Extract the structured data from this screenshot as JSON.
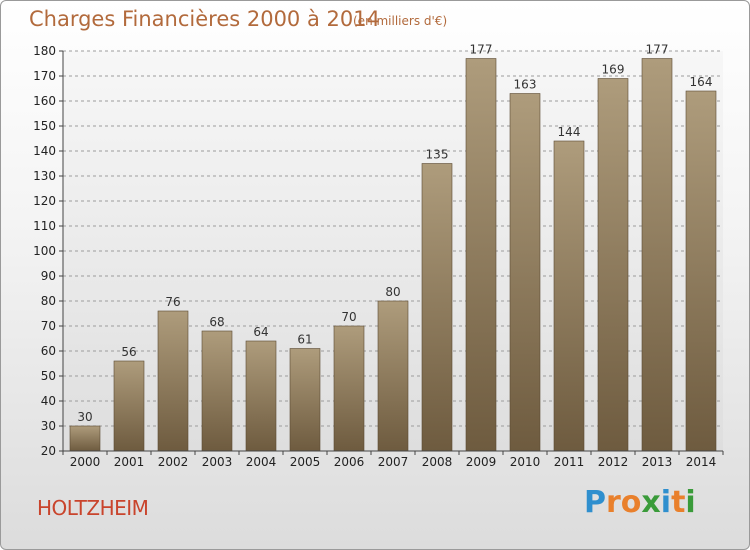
{
  "title": "Charges Financières 2000 à 2014",
  "subtitle": "(en milliers d'€)",
  "city": "HOLTZHEIM",
  "logo": {
    "letters": [
      "P",
      "r",
      "o",
      "x",
      "i",
      "t",
      "i"
    ],
    "colors": [
      "#2f8fce",
      "#e9802c",
      "#e9802c",
      "#3a9b3a",
      "#2f8fce",
      "#e9802c",
      "#3a9b3a"
    ]
  },
  "chart_data": {
    "type": "bar",
    "categories": [
      "2000",
      "2001",
      "2002",
      "2003",
      "2004",
      "2005",
      "2006",
      "2007",
      "2008",
      "2009",
      "2010",
      "2011",
      "2012",
      "2013",
      "2014"
    ],
    "values": [
      30,
      56,
      76,
      68,
      64,
      61,
      70,
      80,
      135,
      177,
      163,
      144,
      169,
      177,
      164
    ],
    "ylim": [
      20,
      180
    ],
    "yticks": [
      20,
      30,
      40,
      50,
      60,
      70,
      80,
      90,
      100,
      110,
      120,
      130,
      140,
      150,
      160,
      170,
      180
    ],
    "grid": true,
    "bar_color_top": "#ae9c7c",
    "bar_color_bottom": "#6e5b3f"
  }
}
